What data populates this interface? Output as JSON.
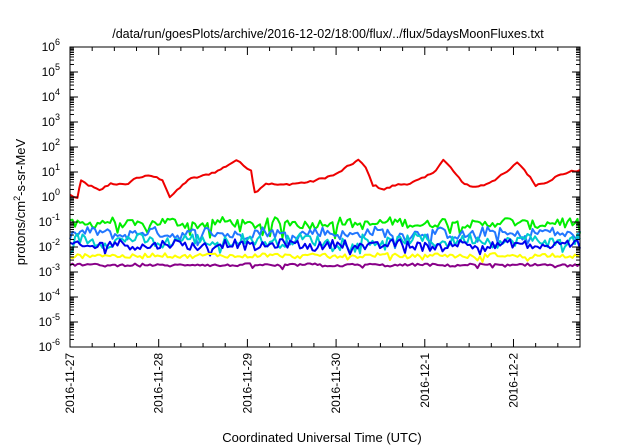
{
  "chart_data": {
    "type": "line",
    "title": "/data/run/goesPlots/archive/2016-12-02/18:00/flux/../flux/5daysMoonFluxes.txt",
    "xlabel": "Coordinated Universal Time (UTC)",
    "ylabel": {
      "prefix": "protons/cm",
      "superscript": "2",
      "suffix": "-s-sr-MeV"
    },
    "y_scale": "log",
    "ylim": [
      1e-06,
      1000000.0
    ],
    "y_ticks": [
      {
        "exp": "-6",
        "value": 1e-06
      },
      {
        "exp": "-5",
        "value": 1e-05
      },
      {
        "exp": "-4",
        "value": 0.0001
      },
      {
        "exp": "-3",
        "value": 0.001
      },
      {
        "exp": "-2",
        "value": 0.01
      },
      {
        "exp": "-1",
        "value": 0.1
      },
      {
        "exp": "0",
        "value": 1
      },
      {
        "exp": "1",
        "value": 10
      },
      {
        "exp": "2",
        "value": 100
      },
      {
        "exp": "3",
        "value": 1000
      },
      {
        "exp": "4",
        "value": 10000
      },
      {
        "exp": "5",
        "value": 100000
      },
      {
        "exp": "6",
        "value": 1000000
      }
    ],
    "y_tick_base": "10",
    "xlim": [
      "2016-11-27T00:00",
      "2016-12-02T18:00"
    ],
    "x_ticks": [
      "2016-11-27",
      "2016-11-28",
      "2016-11-29",
      "2016-11-30",
      "2016-12-1",
      "2016-12-2"
    ],
    "grid": false,
    "legend": "none",
    "series": [
      {
        "color": "#ee0000",
        "points": [
          [
            "2016-11-27T00:00",
            1.2
          ],
          [
            "2016-11-27T02:00",
            0.9
          ],
          [
            "2016-11-27T03:00",
            4.5
          ],
          [
            "2016-11-27T05:00",
            3.0
          ],
          [
            "2016-11-27T08:00",
            1.8
          ],
          [
            "2016-11-27T11:00",
            3.5
          ],
          [
            "2016-11-27T15:00",
            3.0
          ],
          [
            "2016-11-27T18:00",
            6.0
          ],
          [
            "2016-11-27T22:00",
            7.0
          ],
          [
            "2016-11-28T01:00",
            5.0
          ],
          [
            "2016-11-28T03:00",
            1.0
          ],
          [
            "2016-11-28T05:00",
            1.8
          ],
          [
            "2016-11-28T08:00",
            5.0
          ],
          [
            "2016-11-28T12:00",
            7.0
          ],
          [
            "2016-11-28T16:00",
            11.0
          ],
          [
            "2016-11-28T19:00",
            20.0
          ],
          [
            "2016-11-28T21:00",
            30.0
          ],
          [
            "2016-11-28T23:00",
            18.0
          ],
          [
            "2016-11-29T01:00",
            12.0
          ],
          [
            "2016-11-29T02:00",
            1.5
          ],
          [
            "2016-11-29T05:00",
            3.5
          ],
          [
            "2016-11-29T09:00",
            3.0
          ],
          [
            "2016-11-29T13:00",
            3.5
          ],
          [
            "2016-11-29T17:00",
            4.0
          ],
          [
            "2016-11-29T21:00",
            6.0
          ],
          [
            "2016-11-30T00:00",
            8.0
          ],
          [
            "2016-11-30T03:00",
            16.0
          ],
          [
            "2016-11-30T06:00",
            30.0
          ],
          [
            "2016-11-30T08:00",
            15.0
          ],
          [
            "2016-11-30T10:00",
            3.0
          ],
          [
            "2016-11-30T13:00",
            2.0
          ],
          [
            "2016-11-30T16:00",
            3.0
          ],
          [
            "2016-11-30T20:00",
            3.5
          ],
          [
            "2016-12-01T00:00",
            6.0
          ],
          [
            "2016-12-01T03:00",
            12.0
          ],
          [
            "2016-12-01T05:00",
            30.0
          ],
          [
            "2016-12-01T07:00",
            15.0
          ],
          [
            "2016-12-01T10:00",
            4.0
          ],
          [
            "2016-12-01T13:00",
            2.5
          ],
          [
            "2016-12-01T16:00",
            3.0
          ],
          [
            "2016-12-01T19:00",
            5.0
          ],
          [
            "2016-12-01T23:00",
            12.0
          ],
          [
            "2016-12-02T01:00",
            25.0
          ],
          [
            "2016-12-02T03:00",
            12.0
          ],
          [
            "2016-12-02T06:00",
            3.0
          ],
          [
            "2016-12-02T09:00",
            4.0
          ],
          [
            "2016-12-02T12:00",
            7.0
          ],
          [
            "2016-12-02T15:00",
            10.0
          ],
          [
            "2016-12-02T18:00",
            12.0
          ]
        ]
      },
      {
        "color": "#00ee00",
        "baseline": 0.09,
        "amplitude": 0.18,
        "lowdips": 0.35
      },
      {
        "color": "#2277ff",
        "baseline": 0.035,
        "amplitude": 0.2,
        "lowdips": 0.3
      },
      {
        "color": "#00cccc",
        "baseline": 0.018,
        "amplitude": 0.22,
        "lowdips": 0.3
      },
      {
        "color": "#0000ee",
        "baseline": 0.012,
        "amplitude": 0.18,
        "lowdips": 0.25
      },
      {
        "color": "#ffff00",
        "baseline": 0.0045,
        "amplitude": 0.08,
        "lowdips": 0.15
      },
      {
        "color": "#880088",
        "baseline": 0.0019,
        "amplitude": 0.05,
        "lowdips": 0.1
      }
    ]
  }
}
